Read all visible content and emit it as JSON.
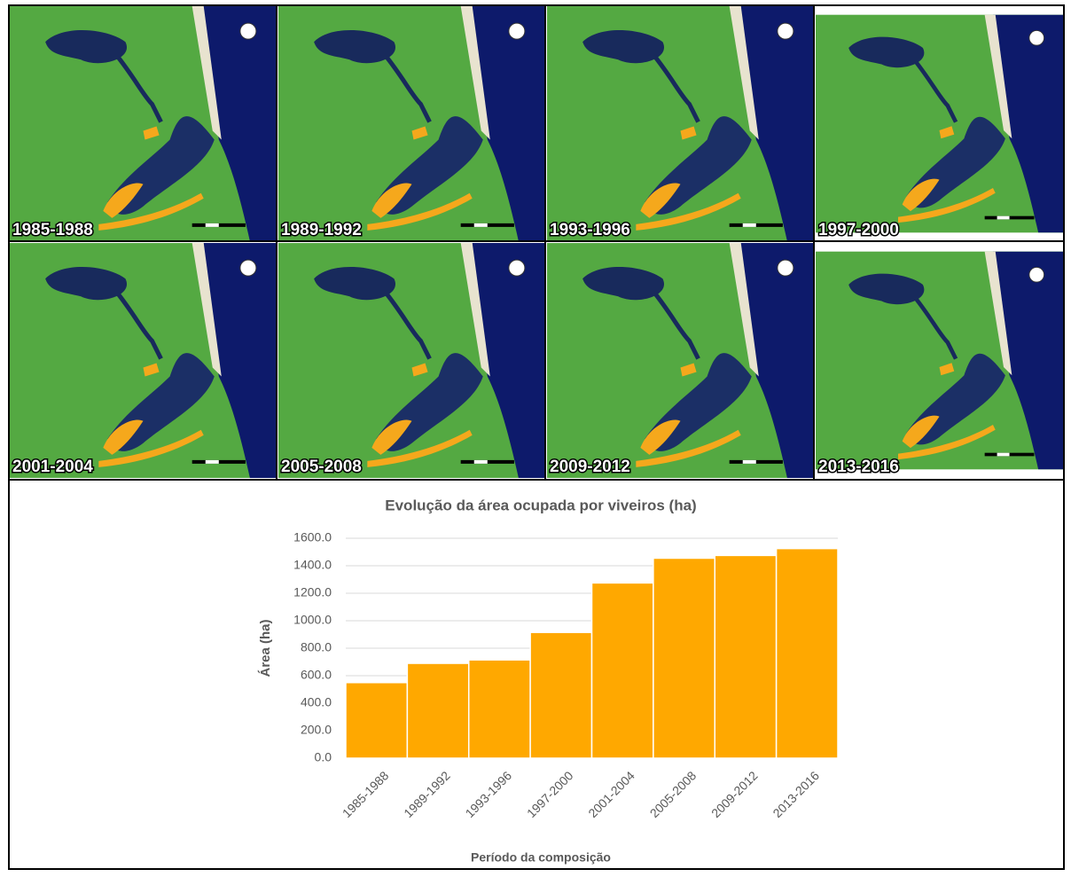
{
  "panels": [
    {
      "label": "1985-1988"
    },
    {
      "label": "1989-1992"
    },
    {
      "label": "1993-1996"
    },
    {
      "label": "1997-2000"
    },
    {
      "label": "2001-2004"
    },
    {
      "label": "2005-2008"
    },
    {
      "label": "2009-2012"
    },
    {
      "label": "2013-2016"
    }
  ],
  "chart_data": {
    "type": "bar",
    "title": "Evolução da área ocupada por viveiros (ha)",
    "x_label": "Período da composição",
    "y_label": "Área (ha)",
    "categories": [
      "1985-1988",
      "1989-1992",
      "1993-1996",
      "1997-2000",
      "2001-2004",
      "2005-2008",
      "2009-2012",
      "2013-2016"
    ],
    "values": [
      550,
      690,
      715,
      915,
      1275,
      1455,
      1475,
      1525
    ],
    "color": "#ffa800",
    "ylim": [
      0,
      1600
    ],
    "yticks": [
      {
        "value": 0,
        "label": "0.0"
      },
      {
        "value": 200,
        "label": "200.0"
      },
      {
        "value": 400,
        "label": "400.0"
      },
      {
        "value": 600,
        "label": "600.0"
      },
      {
        "value": 800,
        "label": "800.0"
      },
      {
        "value": 1000,
        "label": "1000.0"
      },
      {
        "value": 1200,
        "label": "1200.0"
      },
      {
        "value": 1400,
        "label": "1400.0"
      },
      {
        "value": 1600,
        "label": "1600.0"
      }
    ],
    "grid": true
  }
}
